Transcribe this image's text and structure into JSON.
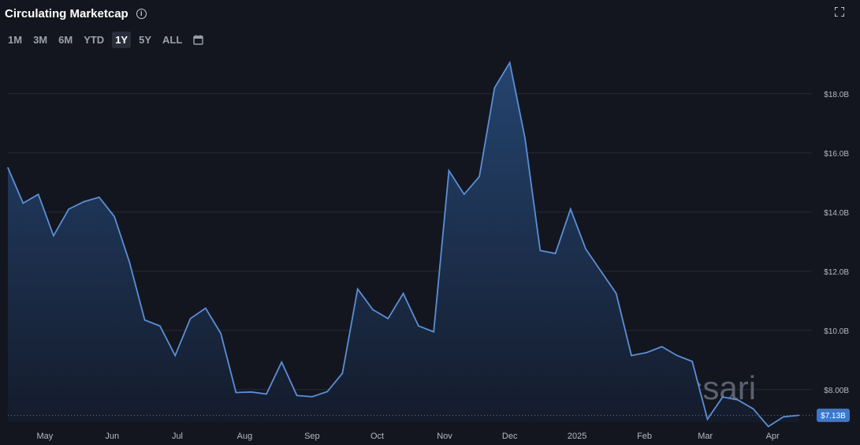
{
  "header": {
    "title": "Circulating Marketcap",
    "info_icon": "info-icon",
    "expand_icon": "fullscreen-icon"
  },
  "ranges": {
    "items": [
      "1M",
      "3M",
      "6M",
      "YTD",
      "1Y",
      "5Y",
      "ALL"
    ],
    "active": "1Y",
    "calendar_icon": "calendar-icon"
  },
  "watermark": "Messari",
  "colors": {
    "background": "#14161f",
    "line": "#5b8fd6",
    "area_top": "#24446f",
    "area_bottom": "#141b2b",
    "last_label_bg": "#3b78c9"
  },
  "chart_data": {
    "type": "area",
    "title": "Circulating Marketcap",
    "xlabel": "",
    "ylabel": "",
    "ylim": [
      6.9,
      19.3
    ],
    "y_ticks": [
      {
        "value": 8,
        "label": "$8.00B"
      },
      {
        "value": 10,
        "label": "$10.0B"
      },
      {
        "value": 12,
        "label": "$12.0B"
      },
      {
        "value": 14,
        "label": "$14.0B"
      },
      {
        "value": 16,
        "label": "$16.0B"
      },
      {
        "value": 18,
        "label": "$18.0B"
      }
    ],
    "x_ticks": [
      {
        "date": "2024-05-01",
        "label": "May"
      },
      {
        "date": "2024-06-01",
        "label": "Jun"
      },
      {
        "date": "2024-07-01",
        "label": "Jul"
      },
      {
        "date": "2024-08-01",
        "label": "Aug"
      },
      {
        "date": "2024-09-01",
        "label": "Sep"
      },
      {
        "date": "2024-10-01",
        "label": "Oct"
      },
      {
        "date": "2024-11-01",
        "label": "Nov"
      },
      {
        "date": "2024-12-01",
        "label": "Dec"
      },
      {
        "date": "2025-01-01",
        "label": "2025"
      },
      {
        "date": "2025-02-01",
        "label": "Feb"
      },
      {
        "date": "2025-03-01",
        "label": "Mar"
      },
      {
        "date": "2025-04-01",
        "label": "Apr"
      }
    ],
    "x_range": [
      "2024-04-14",
      "2025-04-14"
    ],
    "grid": true,
    "legend": "none",
    "last_value_label": "$7.13B",
    "last_value": 7.13,
    "series": [
      {
        "unit": "USD billions",
        "x": [
          "2024-04-14",
          "2024-04-21",
          "2024-04-28",
          "2024-05-05",
          "2024-05-12",
          "2024-05-19",
          "2024-05-26",
          "2024-06-02",
          "2024-06-09",
          "2024-06-16",
          "2024-06-23",
          "2024-06-30",
          "2024-07-07",
          "2024-07-14",
          "2024-07-21",
          "2024-07-28",
          "2024-08-04",
          "2024-08-11",
          "2024-08-18",
          "2024-08-25",
          "2024-09-01",
          "2024-09-08",
          "2024-09-15",
          "2024-09-22",
          "2024-09-29",
          "2024-10-06",
          "2024-10-13",
          "2024-10-20",
          "2024-10-27",
          "2024-11-03",
          "2024-11-10",
          "2024-11-17",
          "2024-11-24",
          "2024-12-01",
          "2024-12-08",
          "2024-12-15",
          "2024-12-22",
          "2024-12-29",
          "2025-01-05",
          "2025-01-12",
          "2025-01-19",
          "2025-01-26",
          "2025-02-02",
          "2025-02-09",
          "2025-02-16",
          "2025-02-23",
          "2025-03-02",
          "2025-03-09",
          "2025-03-16",
          "2025-03-23",
          "2025-03-30",
          "2025-04-06",
          "2025-04-13"
        ],
        "y": [
          15.5,
          14.3,
          14.6,
          13.2,
          14.1,
          14.35,
          14.5,
          13.85,
          12.3,
          10.35,
          10.15,
          9.15,
          10.4,
          10.75,
          9.9,
          7.9,
          7.92,
          7.85,
          8.93,
          7.8,
          7.76,
          7.93,
          8.55,
          11.4,
          10.7,
          10.4,
          11.25,
          10.15,
          9.95,
          15.4,
          14.6,
          15.2,
          18.2,
          19.05,
          16.5,
          12.7,
          12.6,
          14.1,
          12.75,
          12.0,
          11.25,
          9.15,
          9.25,
          9.45,
          9.15,
          8.95,
          7.0,
          7.75,
          7.65,
          7.35,
          6.75,
          7.08,
          7.13
        ]
      }
    ]
  }
}
